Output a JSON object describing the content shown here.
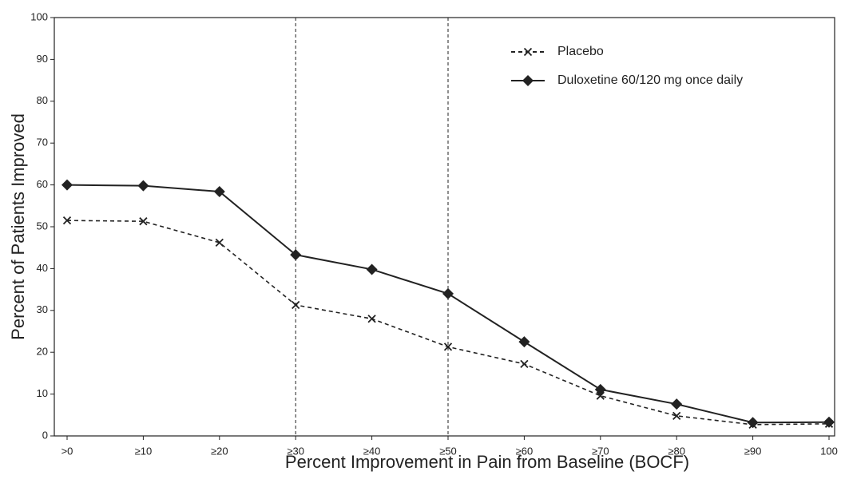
{
  "chart_data": {
    "type": "line",
    "xlabel": "Percent Improvement in Pain from Baseline (BOCF)",
    "ylabel": "Percent of Patients Improved",
    "categories": [
      ">0",
      "≥10",
      "≥20",
      "≥30",
      "≥40",
      "≥50",
      "≥60",
      "≥70",
      "≥80",
      "≥90",
      "100"
    ],
    "series": [
      {
        "name": "Placebo",
        "color": "#222222",
        "dash": true,
        "marker": "x",
        "values": [
          51.5,
          51.3,
          46.2,
          31.3,
          28.0,
          21.3,
          17.2,
          9.6,
          4.8,
          2.7,
          2.9
        ]
      },
      {
        "name": "Duloxetine 60/120 mg once daily",
        "color": "#222222",
        "dash": false,
        "marker": "diamond",
        "values": [
          60.0,
          59.8,
          58.4,
          43.3,
          39.8,
          34.0,
          22.5,
          11.1,
          7.6,
          3.2,
          3.3
        ]
      }
    ],
    "reference_lines": [
      "≥30",
      "≥50"
    ],
    "ylim": [
      0,
      100
    ],
    "yticks": [
      0,
      10,
      20,
      30,
      40,
      50,
      60,
      70,
      80,
      90,
      100
    ],
    "legend": "upper right"
  }
}
